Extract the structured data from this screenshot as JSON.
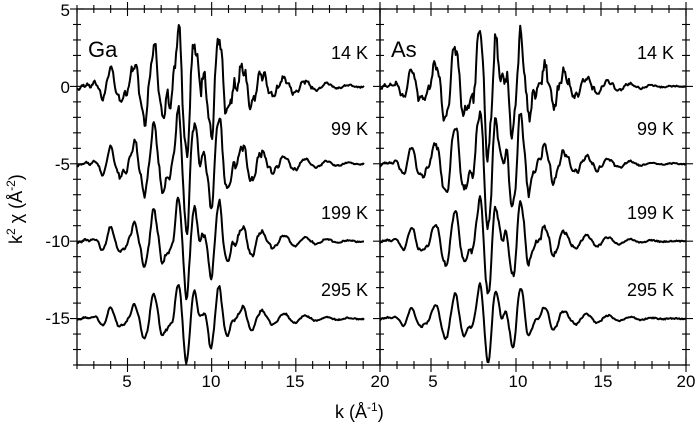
{
  "chart_data": {
    "type": "line",
    "title": "",
    "xlabel": "k (Å-1)",
    "ylabel": "k2 χ (Å-2)",
    "ylim": [
      -18,
      5
    ],
    "yticks": [
      5,
      0,
      -5,
      -10,
      -15
    ],
    "grid": false,
    "legend": "none (inline temperature labels)",
    "panels": [
      {
        "label": "Ga",
        "xlim": [
          2,
          20
        ],
        "xticks": [
          5,
          10,
          15,
          20
        ],
        "series": [
          {
            "name": "14 K",
            "offset": 0,
            "amplitude": 1.0,
            "noise": 0.35
          },
          {
            "name": "99 K",
            "offset": -5,
            "amplitude": 0.92,
            "noise": 0.22
          },
          {
            "name": "199 K",
            "offset": -10,
            "amplitude": 0.75,
            "noise": 0.12
          },
          {
            "name": "295 K",
            "offset": -15,
            "amplitude": 0.6,
            "noise": 0.06
          }
        ]
      },
      {
        "label": "As",
        "xlim": [
          2,
          20
        ],
        "xticks": [
          5,
          10,
          15,
          20
        ],
        "series": [
          {
            "name": "14 K",
            "offset": 0,
            "amplitude": 1.0,
            "noise": 0.35
          },
          {
            "name": "99 K",
            "offset": -5,
            "amplitude": 0.92,
            "noise": 0.22
          },
          {
            "name": "199 K",
            "offset": -10,
            "amplitude": 0.75,
            "noise": 0.12
          },
          {
            "name": "295 K",
            "offset": -15,
            "amplitude": 0.6,
            "noise": 0.06
          }
        ]
      }
    ],
    "approx_extrema": {
      "Ga_14K": {
        "max": [
          8.0,
          2.7
        ],
        "min": [
          8.5,
          -3.7
        ],
        "min2": [
          10.0,
          -3.5
        ]
      },
      "Ga_295K": {
        "max": [
          8.0,
          -13.6
        ],
        "min": [
          8.5,
          -17.2
        ]
      },
      "As_14K": {
        "max": [
          7.8,
          3.1
        ],
        "min": [
          8.3,
          -3.7
        ],
        "min2": [
          9.8,
          -4.1
        ]
      },
      "As_295K": {
        "max": [
          7.8,
          -13.3
        ],
        "min": [
          8.2,
          -17.1
        ]
      }
    }
  },
  "labels": {
    "panel_left": "Ga",
    "panel_right": "As",
    "temps": [
      "14 K",
      "99 K",
      "199 K",
      "295 K"
    ],
    "x_axis_title": "k (Å",
    "x_axis_sup": "-1",
    "x_axis_close": ")",
    "y_axis_k": "k",
    "y_axis_sup1": "2",
    "y_axis_mid": " χ (Å",
    "y_axis_sup2": "-2",
    "y_axis_close": ")",
    "yticks": [
      "5",
      "0",
      "-5",
      "-10",
      "-15"
    ],
    "xticks_left": [
      "5",
      "10",
      "15",
      "20"
    ],
    "xticks_right": [
      "5",
      "10",
      "15",
      "20"
    ]
  },
  "colors": {
    "line": "#000000",
    "background": "#ffffff"
  }
}
